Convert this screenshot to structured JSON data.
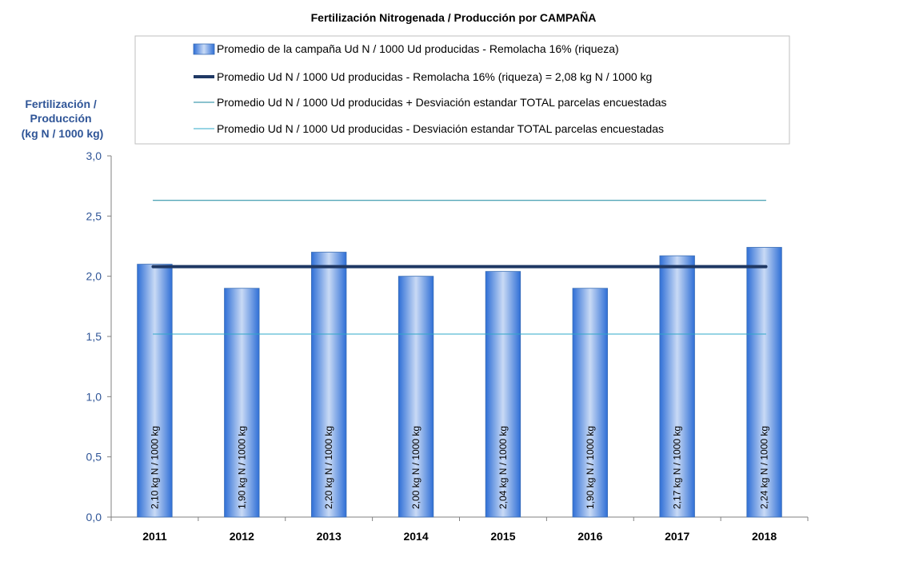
{
  "chart_data": {
    "type": "bar",
    "title": "Fertilización Nitrogenada / Producción por CAMPAÑA",
    "ylabel_lines": [
      "Fertilización /",
      "Producción",
      "(kg N / 1000 kg)"
    ],
    "categories": [
      "2011",
      "2012",
      "2013",
      "2014",
      "2015",
      "2016",
      "2017",
      "2018"
    ],
    "series": [
      {
        "name": "Promedio de la campaña Ud N / 1000 Ud producidas - Remolacha 16% (riqueza)",
        "values": [
          2.1,
          1.9,
          2.2,
          2.0,
          2.04,
          1.9,
          2.17,
          2.24
        ],
        "data_labels": [
          "2,10 kg N / 1000 kg",
          "1,90 kg N / 1000 kg",
          "2,20 kg N / 1000 kg",
          "2,00 kg N / 1000 kg",
          "2,04 kg N / 1000 kg",
          "1,90 kg N / 1000 kg",
          "2,17 kg N / 1000 kg",
          "2,24 kg N / 1000 kg"
        ],
        "color": "#5B8FD9"
      }
    ],
    "reference_lines": [
      {
        "name": "Promedio Ud N / 1000 Ud producidas - Remolacha 16% (riqueza) = 2,08 kg N / 1000 kg",
        "value": 2.08,
        "color": "#1F3864"
      },
      {
        "name": "Promedio Ud N / 1000 Ud producidas + Desviación estandar TOTAL parcelas encuestadas",
        "value": 2.63,
        "color": "#17869E"
      },
      {
        "name": "Promedio Ud N / 1000 Ud producidas - Desviación estandar TOTAL parcelas encuestadas",
        "value": 1.52,
        "color": "#2FA8C8"
      }
    ],
    "ylim": [
      0,
      3
    ],
    "yticks": [
      0,
      0.5,
      1.0,
      1.5,
      2.0,
      2.5,
      3.0
    ],
    "ytick_labels": [
      "0,0",
      "0,5",
      "1,0",
      "1,5",
      "2,0",
      "2,5",
      "3,0"
    ],
    "grid": false,
    "legend_position": "top"
  }
}
